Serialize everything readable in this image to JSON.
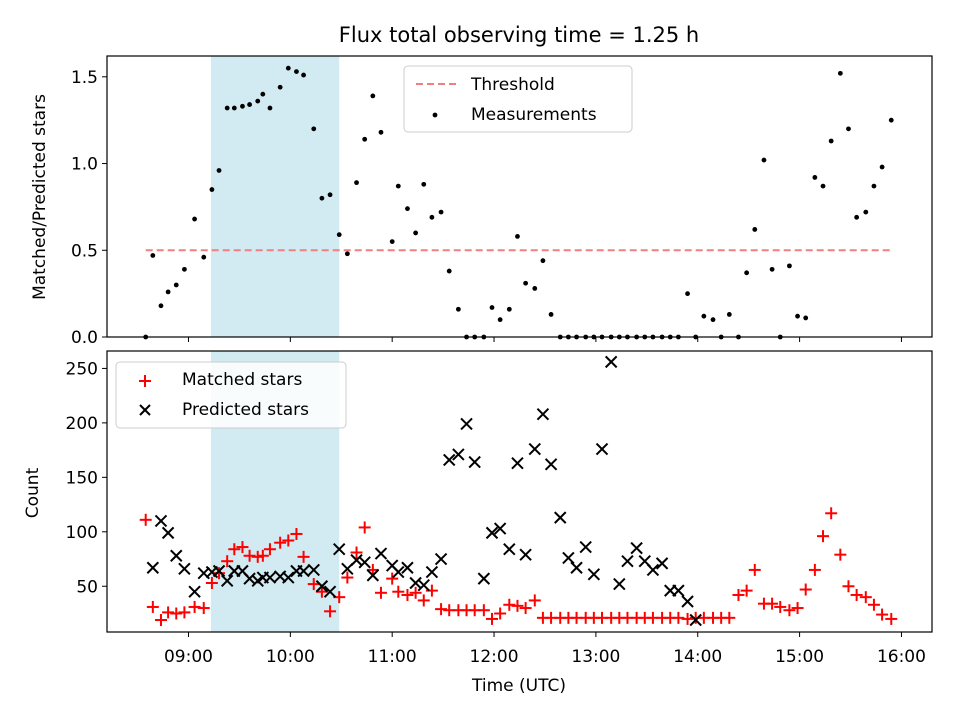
{
  "chart_data": [
    {
      "type": "scatter",
      "title": "Flux total observing time = 1.25 h",
      "xlabel": "",
      "ylabel": "Matched/Predicted stars",
      "xlim": [
        8.2,
        16.3
      ],
      "ylim": [
        0,
        1.62
      ],
      "yticks": [
        0.0,
        0.5,
        1.0,
        1.5
      ],
      "ytick_labels": [
        "0.0",
        "0.5",
        "1.0",
        "1.5"
      ],
      "xticks": [
        9,
        10,
        11,
        12,
        13,
        14,
        15,
        16
      ],
      "shaded_region": {
        "x0": 9.22,
        "x1": 10.48,
        "color": "#add8e6"
      },
      "threshold": {
        "label": "Threshold",
        "value": 0.5,
        "x0": 8.58,
        "x1": 15.92,
        "color": "#f08080"
      },
      "legend": {
        "placement": "upper center",
        "entries": [
          "Threshold",
          "Measurements"
        ]
      },
      "series": [
        {
          "name": "Measurements",
          "marker": "dot",
          "color": "#000000",
          "points": [
            [
              8.58,
              0.0
            ],
            [
              8.65,
              0.47
            ],
            [
              8.73,
              0.18
            ],
            [
              8.8,
              0.26
            ],
            [
              8.88,
              0.3
            ],
            [
              8.96,
              0.39
            ],
            [
              9.06,
              0.68
            ],
            [
              9.15,
              0.46
            ],
            [
              9.23,
              0.85
            ],
            [
              9.3,
              0.96
            ],
            [
              9.38,
              1.32
            ],
            [
              9.45,
              1.32
            ],
            [
              9.53,
              1.33
            ],
            [
              9.6,
              1.34
            ],
            [
              9.68,
              1.36
            ],
            [
              9.73,
              1.4
            ],
            [
              9.8,
              1.32
            ],
            [
              9.9,
              1.44
            ],
            [
              9.98,
              1.55
            ],
            [
              10.06,
              1.53
            ],
            [
              10.13,
              1.51
            ],
            [
              10.23,
              1.2
            ],
            [
              10.31,
              0.8
            ],
            [
              10.39,
              0.82
            ],
            [
              10.48,
              0.59
            ],
            [
              10.56,
              0.48
            ],
            [
              10.65,
              0.89
            ],
            [
              10.73,
              1.14
            ],
            [
              10.81,
              1.39
            ],
            [
              10.89,
              1.18
            ],
            [
              11.0,
              0.55
            ],
            [
              11.06,
              0.87
            ],
            [
              11.15,
              0.74
            ],
            [
              11.23,
              0.6
            ],
            [
              11.31,
              0.88
            ],
            [
              11.39,
              0.69
            ],
            [
              11.48,
              0.72
            ],
            [
              11.56,
              0.38
            ],
            [
              11.65,
              0.16
            ],
            [
              11.73,
              0.0
            ],
            [
              11.81,
              0.0
            ],
            [
              11.9,
              0.0
            ],
            [
              11.98,
              0.17
            ],
            [
              12.06,
              0.1
            ],
            [
              12.15,
              0.16
            ],
            [
              12.23,
              0.58
            ],
            [
              12.31,
              0.31
            ],
            [
              12.4,
              0.28
            ],
            [
              12.48,
              0.44
            ],
            [
              12.56,
              0.13
            ],
            [
              12.65,
              0.0
            ],
            [
              12.73,
              0.0
            ],
            [
              12.81,
              0.0
            ],
            [
              12.9,
              0.0
            ],
            [
              12.98,
              0.0
            ],
            [
              13.06,
              0.0
            ],
            [
              13.15,
              0.0
            ],
            [
              13.23,
              0.0
            ],
            [
              13.31,
              0.0
            ],
            [
              13.4,
              0.0
            ],
            [
              13.48,
              0.0
            ],
            [
              13.56,
              0.0
            ],
            [
              13.65,
              0.0
            ],
            [
              13.73,
              0.0
            ],
            [
              13.81,
              0.0
            ],
            [
              13.9,
              0.25
            ],
            [
              13.98,
              0.0
            ],
            [
              14.06,
              0.12
            ],
            [
              14.15,
              0.1
            ],
            [
              14.23,
              0.0
            ],
            [
              14.31,
              0.13
            ],
            [
              14.4,
              0.0
            ],
            [
              14.48,
              0.37
            ],
            [
              14.56,
              0.62
            ],
            [
              14.65,
              1.02
            ],
            [
              14.73,
              0.39
            ],
            [
              14.81,
              0.0
            ],
            [
              14.9,
              0.41
            ],
            [
              14.98,
              0.12
            ],
            [
              15.06,
              0.11
            ],
            [
              15.15,
              0.92
            ],
            [
              15.23,
              0.87
            ],
            [
              15.31,
              1.13
            ],
            [
              15.4,
              1.52
            ],
            [
              15.48,
              1.2
            ],
            [
              15.56,
              0.69
            ],
            [
              15.65,
              0.72
            ],
            [
              15.73,
              0.87
            ],
            [
              15.81,
              0.98
            ],
            [
              15.9,
              1.25
            ]
          ]
        }
      ]
    },
    {
      "type": "scatter",
      "title": "",
      "xlabel": "Time (UTC)",
      "ylabel": "Count",
      "xlim": [
        8.2,
        16.3
      ],
      "ylim": [
        8,
        266
      ],
      "yticks": [
        50,
        100,
        150,
        200,
        250
      ],
      "ytick_labels": [
        "50",
        "100",
        "150",
        "200",
        "250"
      ],
      "xticks": [
        9,
        10,
        11,
        12,
        13,
        14,
        15,
        16
      ],
      "xtick_labels": [
        "09:00",
        "10:00",
        "11:00",
        "12:00",
        "13:00",
        "14:00",
        "15:00",
        "16:00"
      ],
      "shaded_region": {
        "x0": 9.22,
        "x1": 10.48,
        "color": "#add8e6"
      },
      "legend": {
        "placement": "upper left",
        "entries": [
          "Matched stars",
          "Predicted stars"
        ]
      },
      "series": [
        {
          "name": "Matched stars",
          "marker": "plus",
          "color": "#ff0000",
          "points": [
            [
              8.58,
              111
            ],
            [
              8.65,
              31
            ],
            [
              8.73,
              19
            ],
            [
              8.8,
              26
            ],
            [
              8.88,
              25
            ],
            [
              8.96,
              26
            ],
            [
              9.06,
              31
            ],
            [
              9.15,
              30
            ],
            [
              9.23,
              53
            ],
            [
              9.3,
              62
            ],
            [
              9.38,
              73
            ],
            [
              9.45,
              84
            ],
            [
              9.53,
              86
            ],
            [
              9.6,
              78
            ],
            [
              9.68,
              77
            ],
            [
              9.73,
              78
            ],
            [
              9.8,
              84
            ],
            [
              9.9,
              90
            ],
            [
              9.98,
              92
            ],
            [
              10.06,
              98
            ],
            [
              10.13,
              77
            ],
            [
              10.23,
              52
            ],
            [
              10.31,
              45
            ],
            [
              10.39,
              27
            ],
            [
              10.48,
              40
            ],
            [
              10.56,
              58
            ],
            [
              10.65,
              81
            ],
            [
              10.73,
              104
            ],
            [
              10.81,
              65
            ],
            [
              10.89,
              44
            ],
            [
              11.0,
              57
            ],
            [
              11.06,
              45
            ],
            [
              11.15,
              42
            ],
            [
              11.23,
              44
            ],
            [
              11.31,
              37
            ],
            [
              11.39,
              46
            ],
            [
              11.48,
              29
            ],
            [
              11.56,
              28
            ],
            [
              11.65,
              28
            ],
            [
              11.73,
              28
            ],
            [
              11.81,
              28
            ],
            [
              11.9,
              28
            ],
            [
              11.98,
              20
            ],
            [
              12.06,
              25
            ],
            [
              12.15,
              33
            ],
            [
              12.23,
              32
            ],
            [
              12.31,
              30
            ],
            [
              12.4,
              37
            ],
            [
              12.48,
              21
            ],
            [
              12.56,
              21
            ],
            [
              12.65,
              21
            ],
            [
              12.73,
              21
            ],
            [
              12.81,
              21
            ],
            [
              12.9,
              21
            ],
            [
              12.98,
              21
            ],
            [
              13.06,
              21
            ],
            [
              13.15,
              21
            ],
            [
              13.23,
              21
            ],
            [
              13.31,
              21
            ],
            [
              13.4,
              21
            ],
            [
              13.48,
              21
            ],
            [
              13.56,
              21
            ],
            [
              13.65,
              21
            ],
            [
              13.73,
              21
            ],
            [
              13.81,
              21
            ],
            [
              13.9,
              20
            ],
            [
              13.98,
              21
            ],
            [
              14.06,
              21
            ],
            [
              14.15,
              21
            ],
            [
              14.23,
              21
            ],
            [
              14.31,
              21
            ],
            [
              14.4,
              42
            ],
            [
              14.48,
              46
            ],
            [
              14.56,
              65
            ],
            [
              14.65,
              34
            ],
            [
              14.73,
              34
            ],
            [
              14.81,
              31
            ],
            [
              14.9,
              28
            ],
            [
              14.98,
              30
            ],
            [
              15.06,
              47
            ],
            [
              15.15,
              65
            ],
            [
              15.23,
              96
            ],
            [
              15.31,
              117
            ],
            [
              15.4,
              79
            ],
            [
              15.48,
              50
            ],
            [
              15.56,
              42
            ],
            [
              15.65,
              40
            ],
            [
              15.73,
              33
            ],
            [
              15.81,
              24
            ],
            [
              15.9,
              20
            ]
          ]
        },
        {
          "name": "Predicted stars",
          "marker": "x",
          "color": "#000000",
          "points": [
            [
              8.65,
              67
            ],
            [
              8.73,
              110
            ],
            [
              8.8,
              99
            ],
            [
              8.88,
              78
            ],
            [
              8.96,
              66
            ],
            [
              9.06,
              45
            ],
            [
              9.15,
              62
            ],
            [
              9.23,
              63
            ],
            [
              9.3,
              64
            ],
            [
              9.38,
              55
            ],
            [
              9.45,
              64
            ],
            [
              9.53,
              64
            ],
            [
              9.6,
              57
            ],
            [
              9.68,
              55
            ],
            [
              9.73,
              58
            ],
            [
              9.8,
              58
            ],
            [
              9.9,
              59
            ],
            [
              9.98,
              58
            ],
            [
              10.06,
              64
            ],
            [
              10.13,
              64
            ],
            [
              10.23,
              65
            ],
            [
              10.31,
              50
            ],
            [
              10.39,
              45
            ],
            [
              10.48,
              84
            ],
            [
              10.56,
              66
            ],
            [
              10.65,
              74
            ],
            [
              10.73,
              72
            ],
            [
              10.81,
              60
            ],
            [
              10.89,
              80
            ],
            [
              11.0,
              69
            ],
            [
              11.06,
              63
            ],
            [
              11.15,
              67
            ],
            [
              11.23,
              53
            ],
            [
              11.31,
              51
            ],
            [
              11.39,
              63
            ],
            [
              11.48,
              75
            ],
            [
              11.56,
              166
            ],
            [
              11.65,
              171
            ],
            [
              11.73,
              199
            ],
            [
              11.81,
              164
            ],
            [
              11.9,
              57
            ],
            [
              11.98,
              99
            ],
            [
              12.06,
              103
            ],
            [
              12.15,
              84
            ],
            [
              12.23,
              163
            ],
            [
              12.31,
              79
            ],
            [
              12.4,
              176
            ],
            [
              12.48,
              208
            ],
            [
              12.56,
              162
            ],
            [
              12.65,
              113
            ],
            [
              12.73,
              76
            ],
            [
              12.81,
              67
            ],
            [
              12.9,
              86
            ],
            [
              12.98,
              61
            ],
            [
              13.06,
              176
            ],
            [
              13.15,
              256
            ],
            [
              13.23,
              52
            ],
            [
              13.31,
              73
            ],
            [
              13.4,
              85
            ],
            [
              13.48,
              73
            ],
            [
              13.56,
              65
            ],
            [
              13.65,
              71
            ],
            [
              13.73,
              46
            ],
            [
              13.81,
              46
            ],
            [
              13.9,
              36
            ],
            [
              13.98,
              19
            ]
          ]
        }
      ]
    }
  ],
  "legend_labels": {
    "threshold": "Threshold",
    "measurements": "Measurements",
    "matched": "Matched stars",
    "predicted": "Predicted stars"
  }
}
